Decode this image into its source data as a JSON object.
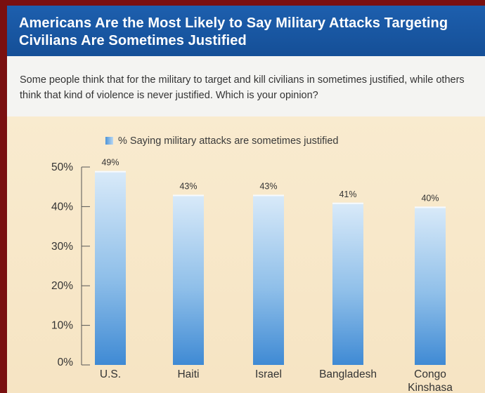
{
  "title": "Americans Are the Most Likely to Say Military Attacks Targeting Civilians Are Sometimes Justified",
  "question": "Some people think that for the military to target and kill civilians in sometimes justified, while others think that kind of violence is never justified. Which is your opinion?",
  "colors": {
    "header": "#1d5fae",
    "frame": "#7a1010",
    "bar_dark": "#4b93d8",
    "bar_light": "#d6e8f8",
    "chart_bg": "#f7e7c9"
  },
  "chart_data": {
    "type": "bar",
    "legend": "% Saying military attacks are sometimes justified",
    "legend_placement": "top",
    "categories": [
      [
        "U.S."
      ],
      [
        "Haiti"
      ],
      [
        "Israel"
      ],
      [
        "Bangladesh"
      ],
      [
        "Congo",
        "Kinshasa"
      ]
    ],
    "values": [
      49,
      43,
      43,
      41,
      40
    ],
    "value_labels": [
      "49%",
      "43%",
      "43%",
      "41%",
      "40%"
    ],
    "yticks": [
      0,
      10,
      20,
      30,
      40,
      50
    ],
    "ytick_labels": [
      "0%",
      "10%",
      "20%",
      "30%",
      "40%",
      "50%"
    ],
    "ylim": [
      0,
      50
    ],
    "grid": false
  }
}
